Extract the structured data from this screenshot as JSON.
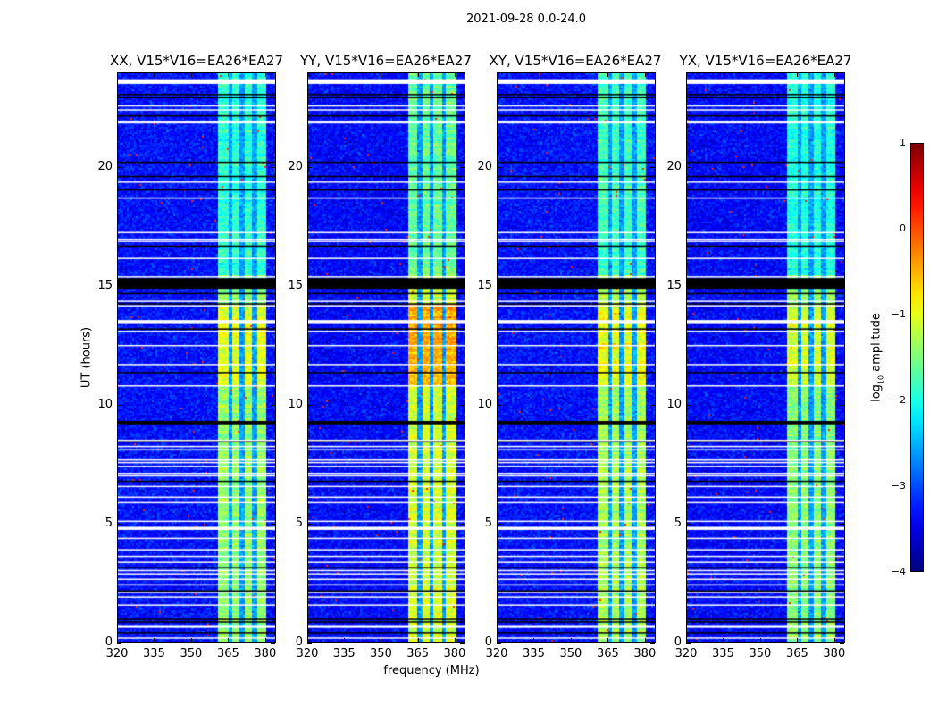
{
  "chart_data": {
    "type": "heatmap",
    "title": "2021-09-28 0.0-24.0",
    "xlabel": "frequency (MHz)",
    "ylabel": "UT (hours)",
    "xlim": [
      320,
      384.4
    ],
    "ylim": [
      0,
      24
    ],
    "xticks": [
      "320",
      "335",
      "350",
      "365",
      "380"
    ],
    "xtick_values": [
      320,
      335,
      350,
      365,
      380
    ],
    "yticks": [
      "0",
      "5",
      "10",
      "15",
      "20"
    ],
    "ytick_values": [
      0,
      5,
      10,
      15,
      20
    ],
    "colormap": "jet",
    "colorbar": {
      "label_main": "log",
      "label_sub": "10",
      "label_rest": " amplitude",
      "range": [
        -4,
        1
      ],
      "ticks": [
        "1",
        "0",
        "−1",
        "−2",
        "−3",
        "−4"
      ],
      "tick_values": [
        1,
        0,
        -1,
        -2,
        -3,
        -4
      ]
    },
    "panels": [
      {
        "title": "XX, V15*V16=EA26*EA27",
        "background_level": -3.3,
        "band_level": -1.4,
        "band_level_11_14h": -1.0
      },
      {
        "title": "YY, V15*V16=EA26*EA27",
        "background_level": -3.35,
        "band_level": -1.1,
        "band_level_11_14h": -0.5
      },
      {
        "title": "XY, V15*V16=EA26*EA27",
        "background_level": -3.3,
        "band_level": -1.3,
        "band_level_11_14h": -0.9
      },
      {
        "title": "YX, V15*V16=EA26*EA27",
        "background_level": -3.35,
        "band_level": -1.45,
        "band_level_11_14h": -1.1
      }
    ],
    "bright_band_mhz": [
      360.7,
      380.4
    ],
    "subband_gaps_mhz": [
      365.8,
      370.5,
      375.6
    ],
    "flagged_blank_rows_hours": [
      [
        23.55,
        23.75
      ],
      [
        22.6,
        22.65
      ],
      [
        22.43,
        22.48
      ],
      [
        21.88,
        22.0
      ],
      [
        19.38,
        19.43
      ],
      [
        18.71,
        18.76
      ],
      [
        17.25,
        17.3
      ],
      [
        16.88,
        16.93
      ],
      [
        16.97,
        17.02
      ],
      [
        16.16,
        16.21
      ],
      [
        15.38,
        15.43
      ],
      [
        14.35,
        14.4
      ],
      [
        14.16,
        14.21
      ],
      [
        13.45,
        13.58
      ],
      [
        13.08,
        13.13
      ],
      [
        12.48,
        12.53
      ],
      [
        11.68,
        11.73
      ],
      [
        10.78,
        10.83
      ],
      [
        8.48,
        8.53
      ],
      [
        8.22,
        8.27
      ],
      [
        8.08,
        8.13
      ],
      [
        7.65,
        7.7
      ],
      [
        7.54,
        7.59
      ],
      [
        7.38,
        7.43
      ],
      [
        7.08,
        7.13
      ],
      [
        6.98,
        7.03
      ],
      [
        6.53,
        6.58
      ],
      [
        6.08,
        6.13
      ],
      [
        5.85,
        5.9
      ],
      [
        5.06,
        5.11
      ],
      [
        4.72,
        4.85
      ],
      [
        4.34,
        4.39
      ],
      [
        3.86,
        3.91
      ],
      [
        3.58,
        3.63
      ],
      [
        3.33,
        3.38
      ],
      [
        2.98,
        3.03
      ],
      [
        2.84,
        2.89
      ],
      [
        2.61,
        2.66
      ],
      [
        2.38,
        2.43
      ],
      [
        2.05,
        2.1
      ],
      [
        1.86,
        1.91
      ],
      [
        1.52,
        1.57
      ],
      [
        0.58,
        0.7
      ],
      [
        0.13,
        0.18
      ]
    ],
    "flagged_zero_rows_hours": [
      [
        23.08,
        23.13
      ],
      [
        22.95,
        23.0
      ],
      [
        22.18,
        22.23
      ],
      [
        20.22,
        20.27
      ],
      [
        19.62,
        19.67
      ],
      [
        19.05,
        19.1
      ],
      [
        16.68,
        16.73
      ],
      [
        14.9,
        15.35
      ],
      [
        14.68,
        14.73
      ],
      [
        14.24,
        14.29
      ],
      [
        13.18,
        13.23
      ],
      [
        11.34,
        11.39
      ],
      [
        9.18,
        9.32
      ],
      [
        8.44,
        8.48
      ],
      [
        6.75,
        6.8
      ],
      [
        3.1,
        3.15
      ],
      [
        2.12,
        2.17
      ],
      [
        0.92,
        0.97
      ],
      [
        0.81,
        0.86
      ],
      [
        0.36,
        0.41
      ]
    ]
  }
}
